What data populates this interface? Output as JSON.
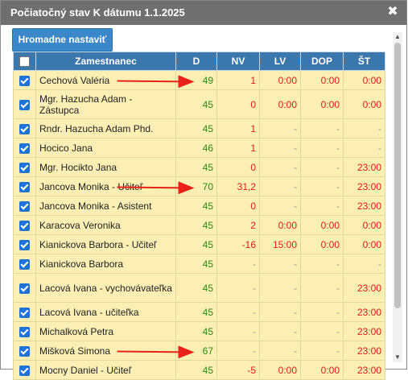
{
  "dialog": {
    "title": "Počiatočný stav K dátumu 1.1.2025",
    "close_icon": "close-icon",
    "bulk_button_label": "Hromadne nastaviť"
  },
  "table": {
    "headers": [
      "Zamestnanec",
      "D",
      "NV",
      "LV",
      "DOP",
      "ŠT"
    ],
    "rows": [
      {
        "checked": true,
        "name": "Cechová Valéria",
        "d": "49",
        "nv": "1",
        "lv": "0:00",
        "dop": "0:00",
        "st": "0:00"
      },
      {
        "checked": true,
        "name": "Mgr. Hazucha Adam - Zástupca",
        "d": "45",
        "nv": "0",
        "lv": "0:00",
        "dop": "0:00",
        "st": "0:00"
      },
      {
        "checked": true,
        "name": "Rndr. Hazucha Adam Phd.",
        "d": "45",
        "nv": "1",
        "lv": "-",
        "dop": "-",
        "st": "-"
      },
      {
        "checked": true,
        "name": "Hocico Jana",
        "d": "46",
        "nv": "1",
        "lv": "-",
        "dop": "-",
        "st": "-"
      },
      {
        "checked": true,
        "name": "Mgr. Hocikto Jana",
        "d": "45",
        "nv": "0",
        "lv": "-",
        "dop": "-",
        "st": "23:00"
      },
      {
        "checked": true,
        "name": "Jancova Monika - Učiteľ",
        "d": "70",
        "nv": "31,2",
        "lv": "-",
        "dop": "-",
        "st": "23:00"
      },
      {
        "checked": true,
        "name": "Jancova Monika - Asistent",
        "d": "45",
        "nv": "0",
        "lv": "-",
        "dop": "-",
        "st": "23:00"
      },
      {
        "checked": true,
        "name": "Karacova Veronika",
        "d": "45",
        "nv": "2",
        "lv": "0:00",
        "dop": "0:00",
        "st": "0:00"
      },
      {
        "checked": true,
        "name": "Kianickova Barbora - Učiteľ",
        "d": "45",
        "nv": "-16",
        "lv": "15:00",
        "dop": "0:00",
        "st": "0:00"
      },
      {
        "checked": true,
        "name": "Kianickova Barbora",
        "d": "45",
        "nv": "-",
        "lv": "-",
        "dop": "-",
        "st": "-"
      },
      {
        "checked": true,
        "name": "Lacová Ivana - vychovávateľka",
        "d": "45",
        "nv": "-",
        "lv": "-",
        "dop": "-",
        "st": "23:00"
      },
      {
        "checked": true,
        "name": "Lacová Ivana - učiteľka",
        "d": "45",
        "nv": "-",
        "lv": "-",
        "dop": "-",
        "st": "23:00"
      },
      {
        "checked": true,
        "name": "Michalková Petra",
        "d": "45",
        "nv": "-",
        "lv": "-",
        "dop": "-",
        "st": "23:00"
      },
      {
        "checked": true,
        "name": "Mišková Simona",
        "d": "67",
        "nv": "-",
        "lv": "-",
        "dop": "-",
        "st": "23:00"
      },
      {
        "checked": true,
        "name": "Mocny Daniel - Učiteľ",
        "d": "45",
        "nv": "-5",
        "lv": "0:00",
        "dop": "0:00",
        "st": "23:00"
      }
    ]
  },
  "annotations": {
    "arrow_color": "#e8221b",
    "arrow_rows": [
      0,
      5,
      13
    ]
  },
  "colors": {
    "header_bg": "#3a77ac",
    "row_bg": "#fcefb4",
    "d_value": "#2a8a12",
    "value_red": "#e21a1a",
    "dash": "#9a9a9a",
    "titlebar": "#6f6f6f",
    "button": "#3a87c9"
  }
}
